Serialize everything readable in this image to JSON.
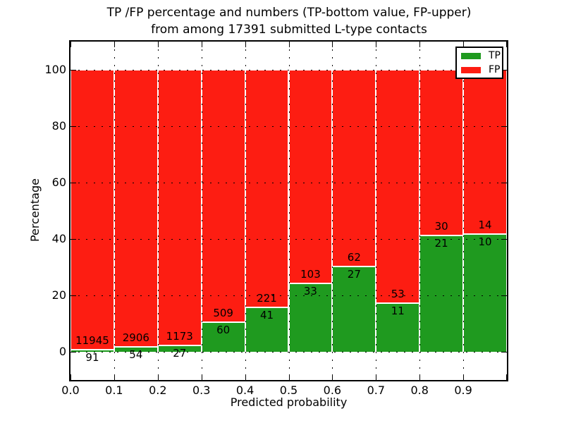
{
  "title": {
    "line1": "TP /FP percentage and numbers (TP-bottom value, FP-upper)",
    "line2": "from among 17391 submitted L-type contacts"
  },
  "axes": {
    "xlabel": "Predicted probability",
    "ylabel": "Percentage"
  },
  "legend": {
    "entries": [
      {
        "label": "TP",
        "color": "#1f9a1f"
      },
      {
        "label": "FP",
        "color": "#fd1d12"
      }
    ]
  },
  "colors": {
    "tp_green": "#1f9a1f",
    "fp_red": "#fd1d12",
    "bar_edge": "#ffffff",
    "grid": "#000000",
    "background": "#ffffff"
  },
  "chart_data": {
    "type": "bar",
    "stacked": true,
    "normalized_to_percent": true,
    "title": "TP /FP percentage and numbers (TP-bottom value, FP-upper)\nfrom among 17391 submitted L-type contacts",
    "xlabel": "Predicted probability",
    "ylabel": "Percentage",
    "xlim": [
      0.0,
      1.0
    ],
    "ylim": [
      -10,
      110
    ],
    "grid": true,
    "legend_position": "upper right",
    "bin_width": 0.1,
    "bin_starts": [
      0.0,
      0.1,
      0.2,
      0.3,
      0.4,
      0.5,
      0.6,
      0.7,
      0.8,
      0.9
    ],
    "xtick_labels": [
      "0.0",
      "0.1",
      "0.2",
      "0.3",
      "0.4",
      "0.5",
      "0.6",
      "0.7",
      "0.8",
      "0.9"
    ],
    "ytick_values": [
      0,
      20,
      40,
      60,
      80,
      100
    ],
    "series": [
      {
        "name": "TP",
        "color": "#1f9a1f",
        "counts": [
          91,
          54,
          27,
          60,
          41,
          33,
          27,
          11,
          21,
          10
        ]
      },
      {
        "name": "FP",
        "color": "#fd1d12",
        "counts": [
          11945,
          2906,
          1173,
          509,
          221,
          103,
          62,
          53,
          30,
          14
        ]
      }
    ],
    "annotation_note": "FP count shown above TP/FP boundary, TP count shown below boundary"
  }
}
